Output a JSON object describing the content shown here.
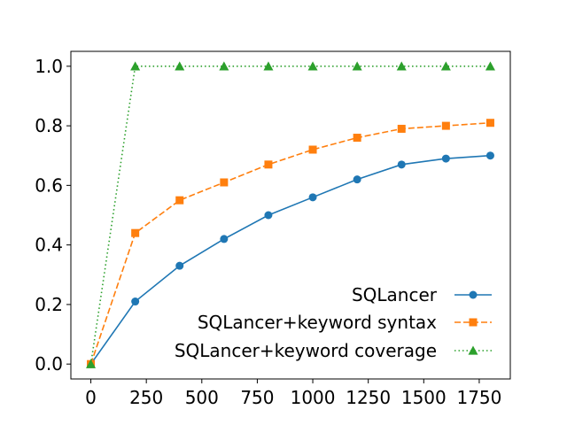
{
  "chart_data": {
    "type": "line",
    "title": "",
    "xlabel": "",
    "ylabel": "",
    "xlim": [
      -90,
      1890
    ],
    "ylim": [
      -0.05,
      1.05
    ],
    "xticks": [
      0,
      250,
      500,
      750,
      1000,
      1250,
      1500,
      1750
    ],
    "xtick_labels": [
      "0",
      "250",
      "500",
      "750",
      "1000",
      "1250",
      "1500",
      "1750"
    ],
    "yticks": [
      0.0,
      0.2,
      0.4,
      0.6,
      0.8,
      1.0
    ],
    "ytick_labels": [
      "0.0",
      "0.2",
      "0.4",
      "0.6",
      "0.8",
      "1.0"
    ],
    "grid": false,
    "legend_position": "lower-right",
    "x": [
      0,
      200,
      400,
      600,
      800,
      1000,
      1200,
      1400,
      1600,
      1800
    ],
    "series": [
      {
        "name": "SQLancer",
        "values": [
          0.0,
          0.21,
          0.33,
          0.42,
          0.5,
          0.56,
          0.62,
          0.67,
          0.69,
          0.7
        ],
        "color": "#1f77b4",
        "linestyle": "solid",
        "marker": "circle"
      },
      {
        "name": "SQLancer+keyword syntax",
        "values": [
          0.0,
          0.44,
          0.55,
          0.61,
          0.67,
          0.72,
          0.76,
          0.79,
          0.8,
          0.81
        ],
        "color": "#ff7f0e",
        "linestyle": "dashed",
        "marker": "square"
      },
      {
        "name": "SQLancer+keyword coverage",
        "values": [
          0.0,
          1.0,
          1.0,
          1.0,
          1.0,
          1.0,
          1.0,
          1.0,
          1.0,
          1.0
        ],
        "color": "#2ca02c",
        "linestyle": "dotted",
        "marker": "triangle"
      }
    ]
  }
}
